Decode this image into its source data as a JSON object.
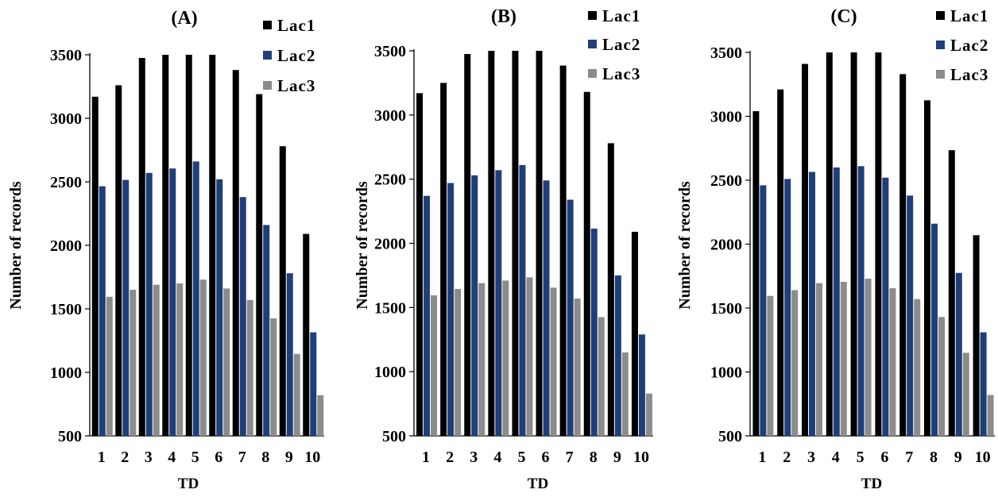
{
  "chart_data": [
    {
      "type": "bar",
      "title": "(A)",
      "xlabel": "TD",
      "ylabel": "Number of records",
      "ylim": [
        500,
        3500
      ],
      "yticks": [
        "500",
        "1000",
        "1500",
        "2000",
        "2500",
        "3000",
        "3500"
      ],
      "categories": [
        "1",
        "2",
        "3",
        "4",
        "5",
        "6",
        "7",
        "8",
        "9",
        "10"
      ],
      "legend_position": "top-right",
      "series": [
        {
          "name": "Lac1",
          "color": "#000000",
          "values": [
            3170,
            3260,
            3475,
            3500,
            3500,
            3500,
            3380,
            3190,
            2780,
            2090
          ]
        },
        {
          "name": "Lac2",
          "color": "#1f3f7a",
          "values": [
            2465,
            2515,
            2570,
            2605,
            2660,
            2520,
            2380,
            2160,
            1780,
            1315
          ]
        },
        {
          "name": "Lac3",
          "color": "#8c8c8c",
          "values": [
            1595,
            1650,
            1690,
            1700,
            1730,
            1660,
            1570,
            1425,
            1145,
            820
          ]
        }
      ]
    },
    {
      "type": "bar",
      "title": "(B)",
      "xlabel": "TD",
      "ylabel": "Number of records",
      "ylim": [
        500,
        3500
      ],
      "yticks": [
        "500",
        "1000",
        "1500",
        "2000",
        "2500",
        "3000",
        "3500"
      ],
      "categories": [
        "1",
        "2",
        "3",
        "4",
        "5",
        "6",
        "7",
        "8",
        "9",
        "10"
      ],
      "legend_position": "top-right",
      "series": [
        {
          "name": "Lac1",
          "color": "#000000",
          "values": [
            3170,
            3250,
            3475,
            3500,
            3500,
            3500,
            3385,
            3180,
            2780,
            2090
          ]
        },
        {
          "name": "Lac2",
          "color": "#1f3f7a",
          "values": [
            2370,
            2470,
            2530,
            2570,
            2610,
            2490,
            2340,
            2115,
            1750,
            1290
          ]
        },
        {
          "name": "Lac3",
          "color": "#8c8c8c",
          "values": [
            1595,
            1645,
            1690,
            1710,
            1735,
            1655,
            1570,
            1425,
            1150,
            830
          ]
        }
      ]
    },
    {
      "type": "bar",
      "title": "(C)",
      "xlabel": "TD",
      "ylabel": "Number of records",
      "ylim": [
        500,
        3500
      ],
      "yticks": [
        "500",
        "1000",
        "1500",
        "2000",
        "2500",
        "3000",
        "3500"
      ],
      "categories": [
        "1",
        "2",
        "3",
        "4",
        "5",
        "6",
        "7",
        "8",
        "9",
        "10"
      ],
      "legend_position": "top-right",
      "series": [
        {
          "name": "Lac1",
          "color": "#000000",
          "values": [
            3040,
            3210,
            3410,
            3500,
            3500,
            3500,
            3330,
            3125,
            2735,
            2070
          ]
        },
        {
          "name": "Lac2",
          "color": "#1f3f7a",
          "values": [
            2460,
            2510,
            2565,
            2600,
            2610,
            2520,
            2380,
            2160,
            1775,
            1310
          ]
        },
        {
          "name": "Lac3",
          "color": "#8c8c8c",
          "values": [
            1595,
            1640,
            1695,
            1705,
            1730,
            1655,
            1570,
            1430,
            1150,
            820
          ]
        }
      ]
    }
  ]
}
